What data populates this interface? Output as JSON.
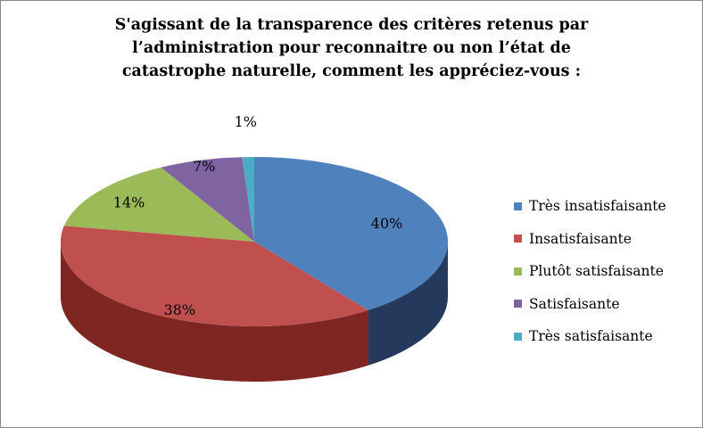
{
  "chart_data": {
    "type": "pie",
    "title_lines": [
      "S'agissant de la transparence des critères retenus par",
      "l’administration pour reconnaitre ou non l’état de",
      "catastrophe naturelle, comment  les appréciez-vous  :"
    ],
    "slices": [
      {
        "label": "Très insatisfaisante",
        "value": 40,
        "value_label": "40%",
        "color": "#4F81BD",
        "side_color": "#24395C"
      },
      {
        "label": "Insatisfaisante",
        "value": 38,
        "value_label": "38%",
        "color": "#C0504D",
        "side_color": "#7F2623"
      },
      {
        "label": "Plutôt satisfaisante",
        "value": 14,
        "value_label": "14%",
        "color": "#9BBB59",
        "side_color": "#5E7530"
      },
      {
        "label": "Satisfaisante",
        "value": 7,
        "value_label": "7%",
        "color": "#8064A2",
        "side_color": "#4D3966"
      },
      {
        "label": "Très satisfaisante",
        "value": 1,
        "value_label": "1%",
        "color": "#4BACC6",
        "side_color": "#236D80"
      }
    ],
    "legend_position": "right",
    "style": "3d-pie"
  }
}
